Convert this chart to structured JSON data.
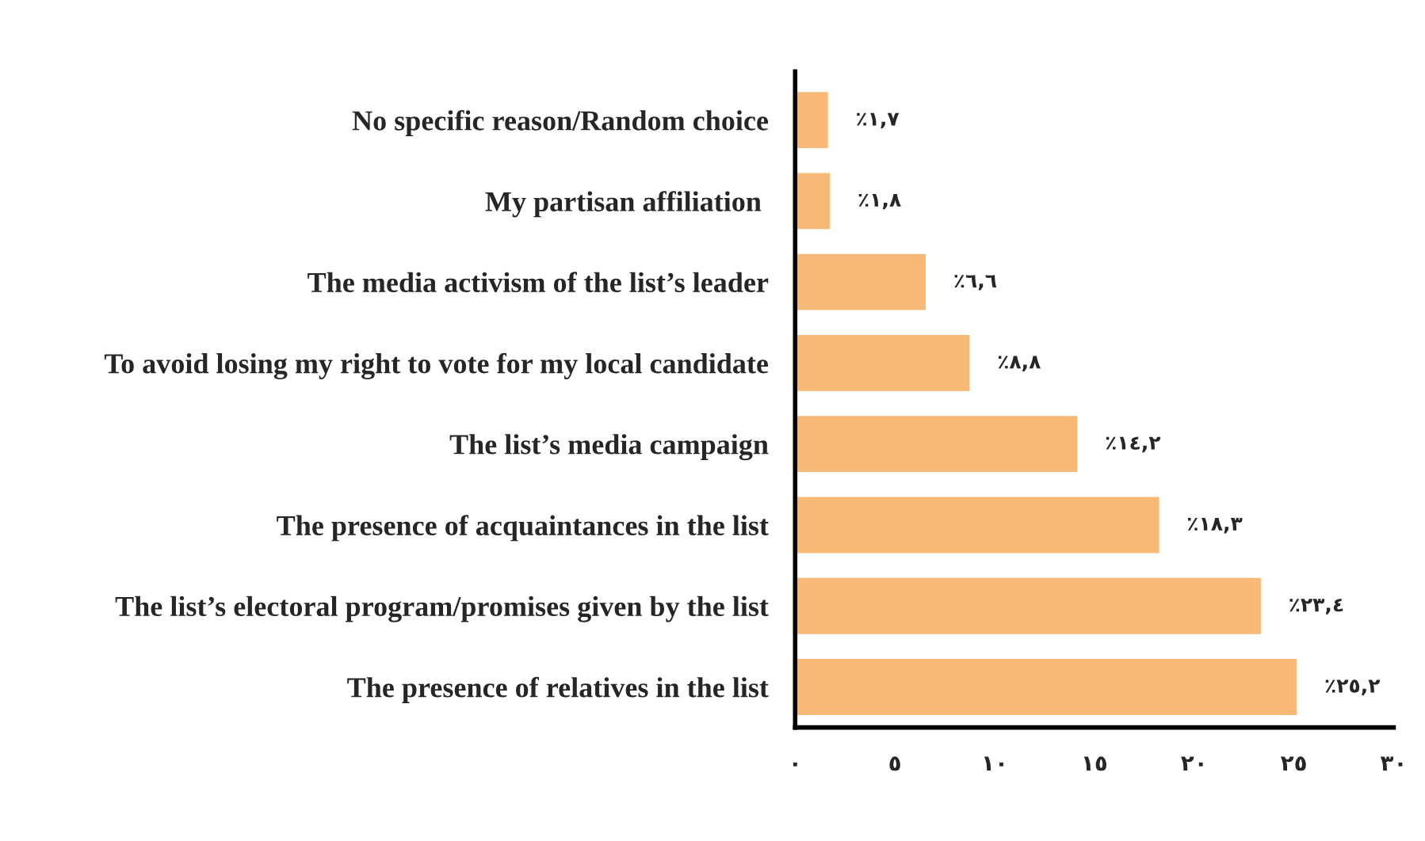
{
  "chart_data": {
    "type": "bar",
    "orientation": "horizontal",
    "categories": [
      "No specific reason/Random choice",
      "My partisan affiliation ",
      "The media activism of the list’s leader",
      "To avoid losing my right to vote for my local candidate",
      "The list’s media campaign",
      "The presence of acquaintances in the list",
      "The list’s electoral program/promises given by the list",
      "The presence of relatives in the list"
    ],
    "values": [
      1.7,
      1.8,
      6.6,
      8.8,
      14.2,
      18.3,
      23.4,
      25.2
    ],
    "value_labels": [
      "٪١,٧",
      "٪١,٨",
      "٪٦,٦",
      "٪٨,٨",
      "٪١٤,٢",
      "٪١٨,٣",
      "٪٢٣,٤",
      "٪٢٥,٢"
    ],
    "color": "#f6b978",
    "xlim": [
      0,
      30
    ],
    "xticks": [
      {
        "value": 0,
        "label": "٠"
      },
      {
        "value": 5,
        "label": "٥"
      },
      {
        "value": 10,
        "label": "١٠"
      },
      {
        "value": 15,
        "label": "١٥"
      },
      {
        "value": 20,
        "label": "٢٠"
      },
      {
        "value": 25,
        "label": "٢٥"
      },
      {
        "value": 30,
        "label": "٣٠"
      }
    ],
    "grid": false,
    "legend": false
  }
}
